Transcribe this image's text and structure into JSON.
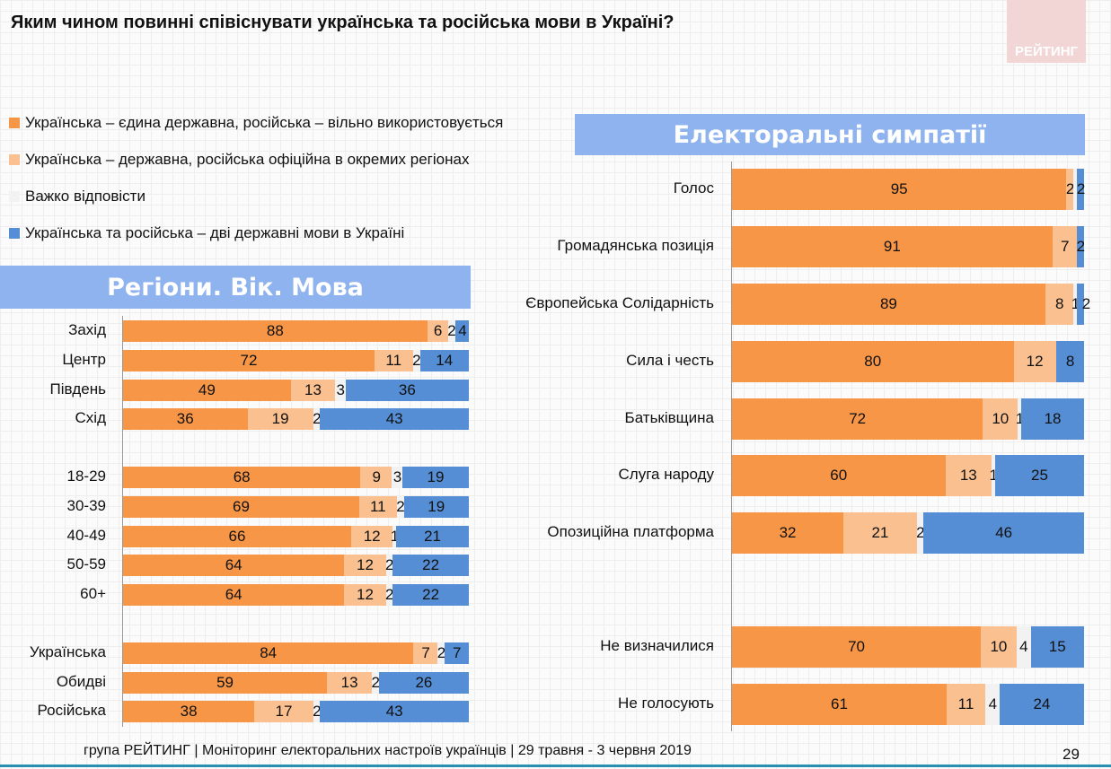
{
  "title": "Яким чином повинні співіснувати українська та російська мови в Україні?",
  "logo": "РЕЙТИНГ",
  "footer": "група РЕЙТИНГ | Моніторинг електоральних настроїв українців  | 29 травня - 3 червня 2019",
  "page_number": "29",
  "chart_data": [
    {
      "type": "bar",
      "orientation": "horizontal",
      "stacked": true,
      "title": "Регіони. Вік. Мова",
      "series": [
        {
          "name": "Українська – єдина державна, російська – вільно використовується",
          "color": "#f79646"
        },
        {
          "name": "Українська – державна, російська офіційна в окремих регіонах",
          "color": "#fac090"
        },
        {
          "name": "Важко відповісти",
          "color": "#f2f2f2"
        },
        {
          "name": "Українська та російська – дві державні мови в Україні",
          "color": "#558ed5"
        }
      ],
      "categories": [
        "Захід",
        "Центр",
        "Південь",
        "Схід",
        "18-29",
        "30-39",
        "40-49",
        "50-59",
        "60+",
        "Українська",
        "Обидві",
        "Російська"
      ],
      "values": [
        [
          88,
          6,
          2,
          4
        ],
        [
          72,
          11,
          2,
          14
        ],
        [
          49,
          13,
          3,
          36
        ],
        [
          36,
          19,
          2,
          43
        ],
        [
          68,
          9,
          3,
          19
        ],
        [
          69,
          11,
          2,
          19
        ],
        [
          66,
          12,
          1,
          21
        ],
        [
          64,
          12,
          2,
          22
        ],
        [
          64,
          12,
          2,
          22
        ],
        [
          84,
          7,
          2,
          7
        ],
        [
          59,
          13,
          2,
          26
        ],
        [
          38,
          17,
          2,
          43
        ]
      ]
    },
    {
      "type": "bar",
      "orientation": "horizontal",
      "stacked": true,
      "title": "Електоральні симпатії",
      "categories": [
        "Голос",
        "Громадянська позиція",
        "Європейська Солідарність",
        "Сила і честь",
        "Батьківщина",
        "Слуга народу",
        "Опозиційна платформа",
        "Не визначилися",
        "Не голосують"
      ],
      "values": [
        [
          95,
          2,
          1,
          2
        ],
        [
          91,
          7,
          0,
          2
        ],
        [
          89,
          8,
          1,
          2
        ],
        [
          80,
          12,
          0,
          8
        ],
        [
          72,
          10,
          1,
          18
        ],
        [
          60,
          13,
          1,
          25
        ],
        [
          32,
          21,
          2,
          46
        ],
        [
          70,
          10,
          4,
          15
        ],
        [
          61,
          11,
          4,
          24
        ]
      ],
      "labels": [
        [
          "95",
          "2",
          null,
          "2"
        ],
        [
          "91",
          "7",
          null,
          "2"
        ],
        [
          "89",
          "8",
          "1",
          "2"
        ],
        [
          "80",
          "12",
          null,
          "8"
        ],
        [
          "72",
          "10",
          "1",
          "18"
        ],
        [
          "60",
          "13",
          "1",
          "25"
        ],
        [
          "32",
          "21",
          "2",
          "46"
        ],
        [
          "70",
          "10",
          "4",
          "15"
        ],
        [
          "61",
          "11",
          "4",
          "24"
        ]
      ]
    }
  ]
}
